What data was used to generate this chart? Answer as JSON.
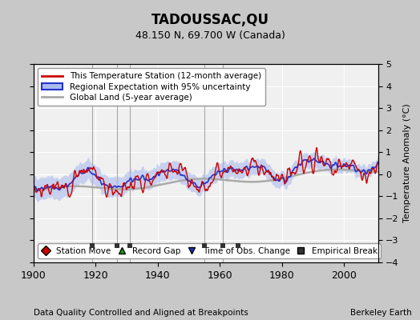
{
  "title": "TADOUSSAC,QU",
  "subtitle": "48.150 N, 69.700 W (Canada)",
  "xlabel_bottom": "Data Quality Controlled and Aligned at Breakpoints",
  "xlabel_right": "Berkeley Earth",
  "ylabel": "Temperature Anomaly (°C)",
  "xlim": [
    1900,
    2011
  ],
  "ylim": [
    -4,
    5
  ],
  "yticks": [
    -4,
    -3,
    -2,
    -1,
    0,
    1,
    2,
    3,
    4,
    5
  ],
  "xticks": [
    1900,
    1920,
    1940,
    1960,
    1980,
    2000
  ],
  "bg_color": "#c8c8c8",
  "plot_bg_color": "#f0f0f0",
  "grid_color": "#ffffff",
  "station_line_color": "#cc0000",
  "regional_line_color": "#2233cc",
  "regional_fill_color": "#aabbee",
  "global_land_color": "#aaaaaa",
  "uncertainty_alpha": 0.6,
  "legend_entries": [
    "This Temperature Station (12-month average)",
    "Regional Expectation with 95% uncertainty",
    "Global Land (5-year average)"
  ],
  "marker_legend": [
    {
      "marker": "D",
      "color": "#cc0000",
      "label": "Station Move"
    },
    {
      "marker": "^",
      "color": "#00aa00",
      "label": "Record Gap"
    },
    {
      "marker": "v",
      "color": "#2233cc",
      "label": "Time of Obs. Change"
    },
    {
      "marker": "s",
      "color": "#333333",
      "label": "Empirical Break"
    }
  ],
  "vertical_lines": [
    1919,
    1927,
    1931,
    1955,
    1961
  ],
  "empirical_breaks_markers": [
    1919,
    1927,
    1931,
    1955,
    1961,
    1966
  ],
  "station_moves": [],
  "record_gaps": [],
  "obs_changes": []
}
